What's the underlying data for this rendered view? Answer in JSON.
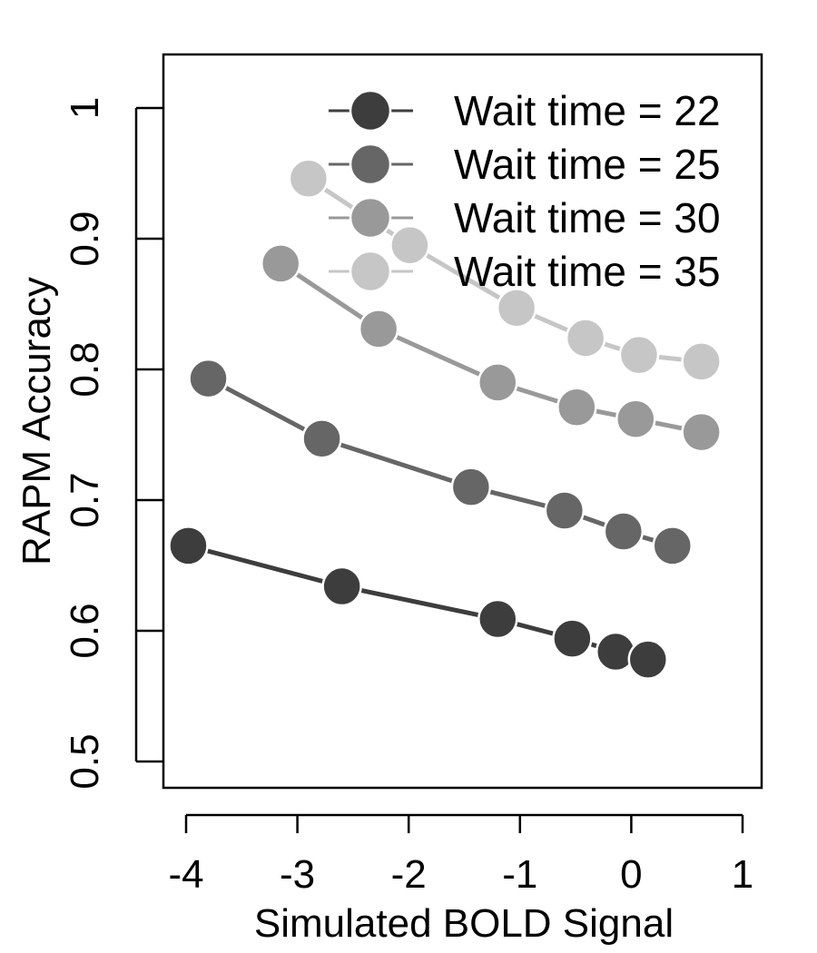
{
  "chart_data": {
    "type": "line",
    "title": "",
    "xlabel": "Simulated BOLD Signal",
    "ylabel": "RAPM Accuracy",
    "xlim": [
      -4,
      1
    ],
    "ylim": [
      0.5,
      1
    ],
    "xticks": [
      "-4",
      "-3",
      "-2",
      "-1",
      "0",
      "1"
    ],
    "yticks": [
      "0.5",
      "0.6",
      "0.7",
      "0.8",
      "0.9",
      "1"
    ],
    "legend_position": "top-right",
    "grid": false,
    "series": [
      {
        "name": "Wait time = 22",
        "color": "#3d3d3d",
        "x": [
          -3.98,
          -2.6,
          -1.2,
          -0.53,
          -0.14,
          0.15
        ],
        "y": [
          0.665,
          0.634,
          0.609,
          0.594,
          0.584,
          0.578
        ]
      },
      {
        "name": "Wait time = 25",
        "color": "#666666",
        "x": [
          -3.8,
          -2.78,
          -1.44,
          -0.6,
          -0.07,
          0.37
        ],
        "y": [
          0.793,
          0.747,
          0.71,
          0.692,
          0.676,
          0.665
        ]
      },
      {
        "name": "Wait time = 30",
        "color": "#999999",
        "x": [
          -3.15,
          -2.27,
          -1.2,
          -0.49,
          0.04,
          0.63
        ],
        "y": [
          0.881,
          0.831,
          0.79,
          0.771,
          0.762,
          0.752
        ]
      },
      {
        "name": "Wait time = 35",
        "color": "#c6c6c6",
        "x": [
          -2.9,
          -1.99,
          -1.03,
          -0.41,
          0.07,
          0.63
        ],
        "y": [
          0.946,
          0.895,
          0.847,
          0.824,
          0.811,
          0.806
        ]
      }
    ]
  }
}
